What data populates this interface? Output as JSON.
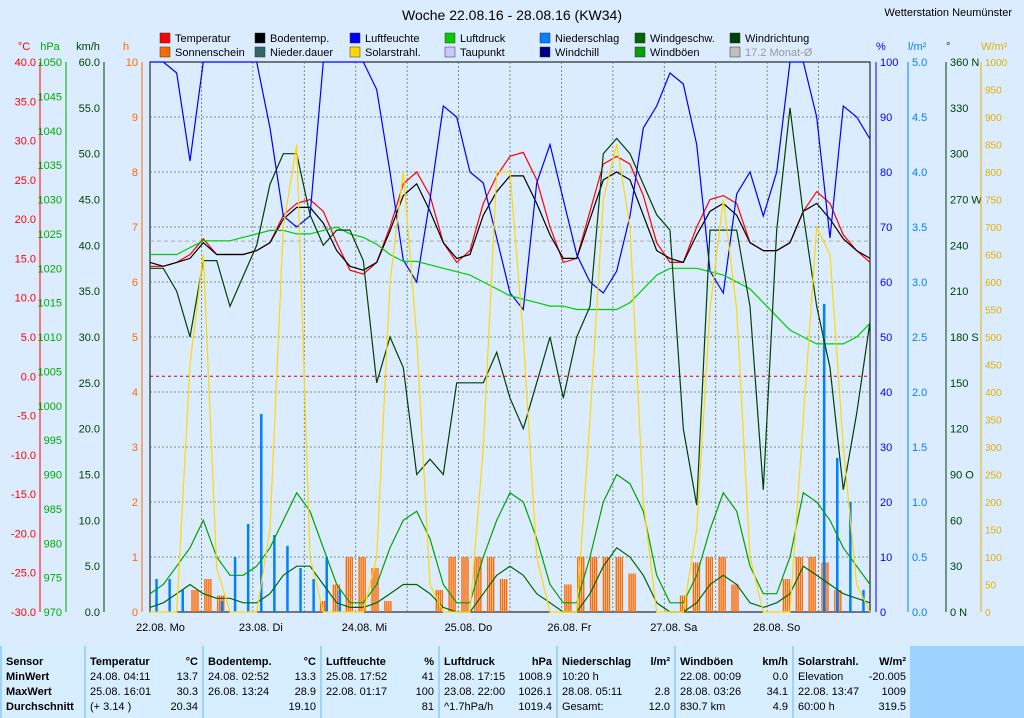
{
  "station": "Wetterstation Neumünster",
  "chart_data": {
    "type": "line",
    "title": "Woche 22.08.16 - 28.08.16 (KW34)",
    "legend": [
      {
        "name": "Temperatur",
        "color": "#ff0000"
      },
      {
        "name": "Sonnenschein",
        "color": "#ff6a00"
      },
      {
        "name": "Bodentemp.",
        "color": "#000000"
      },
      {
        "name": "Nieder.dauer",
        "color": "#336666"
      },
      {
        "name": "Luftfeuchte",
        "color": "#0000ff"
      },
      {
        "name": "Solarstrahl.",
        "color": "#ffd800"
      },
      {
        "name": "Luftdruck",
        "color": "#00cc00"
      },
      {
        "name": "Taupunkt",
        "color": "#c8c8ff"
      },
      {
        "name": "Niederschlag",
        "color": "#0080ff"
      },
      {
        "name": "Windchill",
        "color": "#000080"
      },
      {
        "name": "Windgeschw.",
        "color": "#006600"
      },
      {
        "name": "Windböen",
        "color": "#00a000"
      },
      {
        "name": "Windrichtung",
        "color": "#004000"
      },
      {
        "name": "17.2 Monat-Ø",
        "color": "#c0c0c0"
      }
    ],
    "x_labels": [
      "22.08.  Mo",
      "23.08.  Di",
      "24.08.  Mi",
      "25.08.  Do",
      "26.08.  Fr",
      "27.08.  Sa",
      "28.08.  So"
    ],
    "left_axes": [
      {
        "unit": "°C",
        "color": "#ff0000",
        "ticks": [
          "40.0",
          "35.0",
          "30.0",
          "25.0",
          "20.0",
          "15.0",
          "10.0",
          "5.0",
          "0.0",
          "-5.0",
          "-10.0",
          "-15.0",
          "-20.0",
          "-25.0",
          "-30.0"
        ],
        "range": [
          -30,
          40
        ]
      },
      {
        "unit": "hPa",
        "color": "#00aa00",
        "ticks": [
          "1050",
          "1045",
          "1040",
          "1035",
          "1030",
          "1025",
          "1020",
          "1015",
          "1010",
          "1005",
          "1000",
          "995",
          "990",
          "985",
          "980",
          "975",
          "970"
        ],
        "range": [
          970,
          1050
        ]
      },
      {
        "unit": "km/h",
        "color": "#004000",
        "ticks": [
          "60.0",
          "55.0",
          "50.0",
          "45.0",
          "40.0",
          "35.0",
          "30.0",
          "25.0",
          "20.0",
          "15.0",
          "10.0",
          "5.0",
          "0.0"
        ],
        "range": [
          0,
          60
        ]
      },
      {
        "unit": "h",
        "color": "#ff6a00",
        "ticks": [
          "10",
          "9",
          "8",
          "7",
          "6",
          "5",
          "4",
          "3",
          "2",
          "1",
          "0"
        ],
        "range": [
          0,
          10
        ]
      }
    ],
    "right_axes": [
      {
        "unit": "%",
        "color": "#0000ff",
        "ticks": [
          "100",
          "90",
          "80",
          "70",
          "60",
          "50",
          "40",
          "30",
          "20",
          "10",
          "0"
        ],
        "range": [
          0,
          100
        ]
      },
      {
        "unit": "l/m²",
        "color": "#0080ff",
        "ticks": [
          "5.0",
          "4.5",
          "4.0",
          "3.5",
          "3.0",
          "2.5",
          "2.0",
          "1.5",
          "1.0",
          "0.5",
          "0.0"
        ],
        "range": [
          0,
          5
        ]
      },
      {
        "unit": "°",
        "color": "#004000",
        "ticks": [
          "360 N",
          "330",
          "300",
          "270 W",
          "240",
          "210",
          "180 S",
          "150",
          "120",
          "90 O",
          "60",
          "30",
          "0  N"
        ],
        "range": [
          0,
          360
        ]
      },
      {
        "unit": "W/m²",
        "color": "#e0b000",
        "ticks": [
          "1000",
          "950",
          "900",
          "850",
          "800",
          "750",
          "700",
          "650",
          "600",
          "550",
          "500",
          "450",
          "400",
          "350",
          "300",
          "250",
          "200",
          "150",
          "100",
          "50",
          "0"
        ],
        "range": [
          0,
          1000
        ]
      }
    ],
    "days": 7,
    "series": [
      {
        "name": "Temperatur",
        "color": "#ff0000",
        "values": [
          14,
          14,
          14.5,
          15.5,
          17.5,
          15.5,
          15.5,
          15.5,
          16,
          17,
          20.5,
          22,
          22.5,
          21,
          17,
          13.5,
          13,
          14.5,
          19,
          24.5,
          26,
          23,
          17,
          14.5,
          16,
          22,
          25.5,
          28,
          28.5,
          25,
          19,
          14.5,
          15,
          21,
          27,
          28,
          27,
          23,
          17,
          14.5,
          14.5,
          19,
          22.5,
          23,
          22,
          17,
          16,
          16,
          17,
          21,
          23.5,
          22,
          18,
          16,
          14.5
        ]
      },
      {
        "name": "Bodentemp.",
        "color": "#000000",
        "values": [
          14.5,
          14,
          14.5,
          15,
          17,
          15.5,
          15.5,
          15.5,
          16,
          17,
          20,
          21.5,
          21.5,
          19.5,
          16,
          14,
          13.5,
          14.5,
          18.5,
          23,
          24.5,
          21,
          17,
          15,
          15.5,
          20.5,
          23.5,
          25.5,
          25.5,
          22,
          18,
          15,
          15,
          20,
          25,
          26,
          25,
          20.5,
          16,
          15,
          14.5,
          18,
          21,
          22,
          20.5,
          17,
          16,
          16,
          17,
          21,
          22,
          20,
          17.5,
          16,
          15
        ]
      },
      {
        "name": "Luftfeuchte",
        "color": "#0000ff",
        "values": [
          100,
          100,
          98,
          82,
          100,
          100,
          100,
          100,
          100,
          88,
          72,
          70,
          72,
          100,
          100,
          100,
          100,
          95,
          80,
          64,
          60,
          75,
          92,
          90,
          80,
          78,
          68,
          58,
          55,
          78,
          85,
          75,
          65,
          60,
          58,
          62,
          72,
          88,
          92,
          98,
          96,
          85,
          62,
          58,
          76,
          80,
          72,
          80,
          100,
          100,
          90,
          68,
          92,
          90,
          86
        ]
      },
      {
        "name": "Luftdruck",
        "color": "#00cc00",
        "values": [
          1022,
          1022,
          1022,
          1023,
          1024,
          1024,
          1024,
          1024.5,
          1025,
          1025.5,
          1025.5,
          1025,
          1025,
          1025.5,
          1026,
          1025,
          1024.5,
          1023.5,
          1022,
          1021,
          1021,
          1020.5,
          1020,
          1019.5,
          1019,
          1018,
          1017,
          1016,
          1015.5,
          1015,
          1014.5,
          1014.5,
          1014,
          1014,
          1014,
          1014,
          1015,
          1017,
          1019,
          1020,
          1020,
          1020,
          1019.5,
          1019,
          1018,
          1017,
          1015,
          1013,
          1011,
          1010,
          1009,
          1009,
          1009,
          1010,
          1012
        ]
      },
      {
        "name": "Windgeschw.",
        "color": "#006600",
        "values": [
          0.5,
          1,
          2,
          3,
          2,
          1.5,
          1.5,
          1,
          1,
          2,
          4,
          5,
          5,
          3,
          1,
          0.5,
          0.5,
          1,
          2,
          3,
          3,
          2,
          0.5,
          0,
          0,
          2,
          4,
          5,
          4,
          2,
          1,
          0,
          0,
          2,
          5,
          7,
          6,
          4,
          1,
          0,
          0,
          1,
          3,
          4,
          3,
          1,
          0.5,
          1,
          2,
          5,
          4,
          3,
          2,
          1.5,
          1
        ]
      },
      {
        "name": "Windböen",
        "color": "#00a000",
        "values": [
          2,
          3,
          5,
          7,
          10,
          6,
          4,
          4,
          5,
          7,
          10,
          13,
          11,
          7,
          3,
          1,
          1,
          3,
          7,
          10,
          11,
          8,
          3,
          1,
          1,
          6,
          10,
          13,
          12,
          8,
          3,
          1,
          1,
          6,
          12,
          15,
          14,
          11,
          4,
          1,
          1,
          4,
          9,
          13,
          11,
          5,
          2,
          2,
          6,
          13,
          12,
          10,
          7,
          5,
          3
        ]
      },
      {
        "name": "Windrichtung",
        "color": "#004000",
        "values": [
          225,
          225,
          210,
          180,
          230,
          230,
          200,
          220,
          240,
          280,
          300,
          300,
          260,
          240,
          250,
          250,
          230,
          150,
          180,
          160,
          90,
          100,
          90,
          150,
          150,
          150,
          170,
          140,
          120,
          150,
          180,
          140,
          180,
          200,
          300,
          310,
          300,
          280,
          260,
          250,
          120,
          70,
          250,
          250,
          250,
          200,
          80,
          250,
          330,
          260,
          200,
          160,
          80,
          130,
          190
        ]
      },
      {
        "name": "Solarstrahl.",
        "color": "#ffd800",
        "values": [
          0,
          0,
          0,
          450,
          650,
          80,
          0,
          0,
          0,
          150,
          700,
          850,
          100,
          0,
          0,
          0,
          0,
          100,
          600,
          800,
          500,
          50,
          0,
          0,
          0,
          300,
          800,
          800,
          500,
          100,
          0,
          0,
          0,
          350,
          750,
          850,
          700,
          200,
          0,
          0,
          0,
          150,
          550,
          750,
          550,
          100,
          0,
          0,
          0,
          350,
          700,
          650,
          300,
          50,
          0
        ]
      }
    ],
    "precip_bars": [
      0.3,
      0.3,
      0.2,
      0,
      0,
      0.1,
      0.5,
      0.8,
      1.8,
      0.7,
      0.6,
      0.4,
      0.3,
      0.5,
      0.2,
      0,
      0,
      0,
      0,
      0,
      0,
      0,
      0,
      0,
      0,
      0,
      0,
      0,
      0,
      0,
      0,
      0,
      0,
      0,
      0,
      0,
      0,
      0,
      0,
      0,
      0,
      0,
      0,
      0,
      0,
      0,
      0,
      0,
      0,
      0,
      0,
      2.8,
      1.4,
      1.0,
      0.2
    ],
    "sunshine_bars": [
      0,
      0,
      0,
      0.4,
      0.6,
      0.3,
      0,
      0,
      0,
      0,
      0,
      0,
      0,
      0.2,
      0.5,
      1,
      1,
      0.8,
      0.2,
      0,
      0,
      0,
      0.4,
      1,
      1,
      1,
      1,
      0.6,
      0,
      0,
      0,
      0,
      0.5,
      1,
      1,
      1,
      1,
      0.7,
      0,
      0,
      0,
      0.3,
      0.9,
      1,
      1,
      0.5,
      0,
      0,
      0,
      0.6,
      1,
      1,
      0.9,
      0.4,
      0,
      0
    ],
    "zero_line_c": 0,
    "avg_line_c": 17.2
  },
  "table": {
    "row_labels": [
      "Sensor",
      "MinWert",
      "MaxWert",
      "Durchschnitt"
    ],
    "columns": [
      {
        "title": "Temperatur",
        "unit": "°C",
        "rows": [
          [
            "24.08.  04:11",
            "13.7"
          ],
          [
            "25.08.  16:01",
            "30.3"
          ],
          [
            "(+ 3.14 )",
            "20.34"
          ]
        ]
      },
      {
        "title": "Bodentemp.",
        "unit": "°C",
        "rows": [
          [
            "24.08.  02:52",
            "13.3"
          ],
          [
            "26.08.  13:24",
            "28.9"
          ],
          [
            "",
            "19.10"
          ]
        ]
      },
      {
        "title": "Luftfeuchte",
        "unit": "%",
        "rows": [
          [
            "25.08.  17:52",
            "41"
          ],
          [
            "22.08.  01:17",
            "100"
          ],
          [
            "",
            "81"
          ]
        ]
      },
      {
        "title": "Luftdruck",
        "unit": "hPa",
        "rows": [
          [
            "28.08.  17:15",
            "1008.9"
          ],
          [
            "23.08.  22:00",
            "1026.1"
          ],
          [
            "^1.7hPa/h",
            "1019.4"
          ]
        ]
      },
      {
        "title": "Niederschlag",
        "unit": "l/m²",
        "rows": [
          [
            "10:20 h",
            ""
          ],
          [
            "28.08.  05:11",
            "2.8"
          ],
          [
            "Gesamt:",
            "12.0"
          ]
        ]
      },
      {
        "title": "Windböen",
        "unit": "km/h",
        "rows": [
          [
            "22.08.  00:09",
            "0.0"
          ],
          [
            "28.08.  03:26",
            "34.1"
          ],
          [
            "830.7 km",
            "4.9"
          ]
        ]
      },
      {
        "title": "Solarstrahl.",
        "unit": "W/m²",
        "rows": [
          [
            "Elevation",
            "-20.005"
          ],
          [
            "22.08.  13:47",
            "1009"
          ],
          [
            "60:00 h",
            "319.5"
          ]
        ]
      }
    ]
  }
}
